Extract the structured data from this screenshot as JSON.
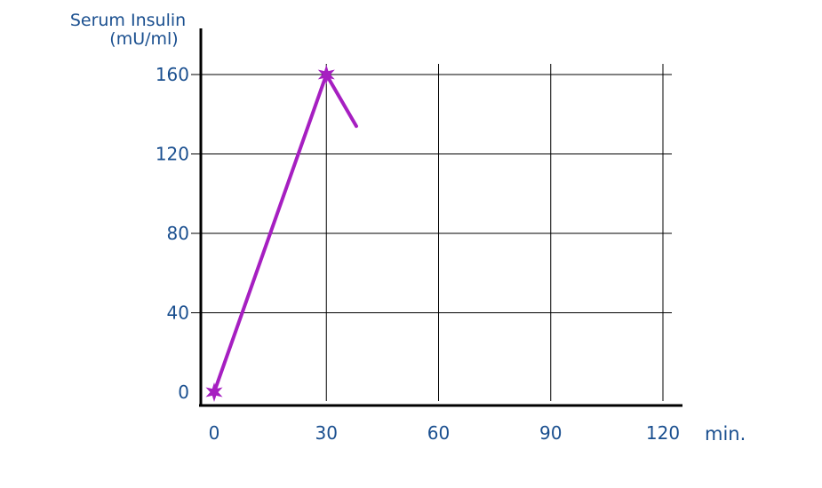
{
  "chart_data": {
    "type": "line",
    "title": "",
    "ylabel_line1": "Serum Insulin",
    "ylabel_line2": "(mU/ml)",
    "xlabel": "min.",
    "x_ticks": [
      0,
      30,
      60,
      90,
      120
    ],
    "y_ticks": [
      0,
      40,
      80,
      120,
      160
    ],
    "xlim": [
      0,
      120
    ],
    "ylim": [
      0,
      160
    ],
    "grid": true,
    "series": [
      {
        "x": [
          0,
          30,
          38
        ],
        "y": [
          0,
          160,
          134
        ],
        "markers_at": [
          0,
          1
        ],
        "marker": "star"
      }
    ],
    "colors": {
      "line": "#a61fc1",
      "text": "#1a4f8f",
      "grid": "#000000",
      "axis": "#000000"
    }
  }
}
